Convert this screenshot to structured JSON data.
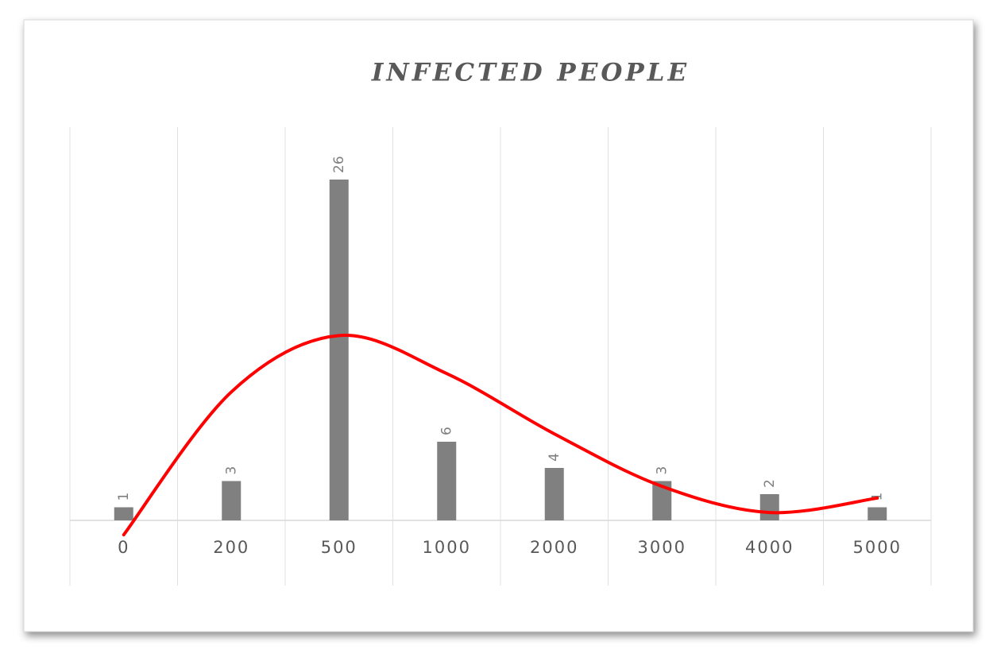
{
  "chart_data": {
    "type": "bar",
    "title": "INFECTED PEOPLE",
    "categories": [
      "0",
      "200",
      "500",
      "1000",
      "2000",
      "3000",
      "4000",
      "5000"
    ],
    "values": [
      1,
      3,
      26,
      6,
      4,
      3,
      2,
      1
    ],
    "color": "#808080",
    "ylim": [
      0,
      30
    ],
    "grid": true,
    "trendline": {
      "color": "#ff0000",
      "values": [
        -1.1,
        9.8,
        14.1,
        11.2,
        6.6,
        2.6,
        0.6,
        1.7
      ]
    }
  }
}
